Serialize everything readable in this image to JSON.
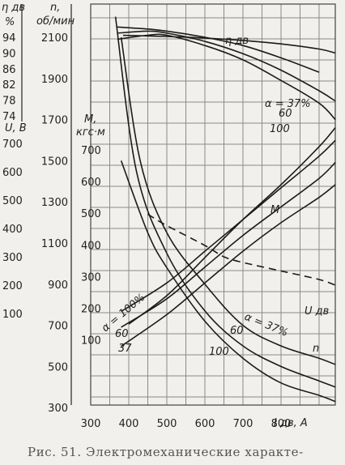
{
  "chart_data": {
    "type": "line",
    "grid": true,
    "xlabel": "I дв, А",
    "x_ticks": [
      "300",
      "400",
      "500",
      "600",
      "700",
      "800"
    ],
    "xlim": [
      300,
      950
    ],
    "axes": [
      {
        "id": "eta",
        "title": "η дв",
        "unit": "%",
        "ticks": [
          "94",
          "90",
          "86",
          "82",
          "78",
          "74"
        ],
        "range": [
          72,
          98
        ]
      },
      {
        "id": "n",
        "title": "n,",
        "unit": "об/мин",
        "ticks": [
          "2100",
          "1900",
          "1700",
          "1500",
          "1300",
          "1100",
          "900",
          "700",
          "500",
          "300"
        ],
        "range": [
          100,
          2300
        ]
      },
      {
        "id": "U",
        "title": "U, В",
        "ticks": [
          "700",
          "600",
          "500",
          "400",
          "300",
          "200",
          "100"
        ],
        "range": [
          -100,
          850
        ]
      },
      {
        "id": "M",
        "title": "M,",
        "unit": "кгс·м",
        "ticks": [
          "700",
          "600",
          "500",
          "400",
          "300",
          "200",
          "100"
        ],
        "range": [
          -100,
          850
        ]
      }
    ],
    "series": [
      {
        "name": "η дв",
        "axis": "eta",
        "style": "solid",
        "x": [
          385,
          500,
          600,
          700,
          800,
          900,
          950
        ],
        "y": [
          94.5,
          94.2,
          93.8,
          93.2,
          92.3,
          91,
          90
        ]
      },
      {
        "label": "α = 37%",
        "axis": "n",
        "style": "solid",
        "x": [
          370,
          450,
          500,
          600,
          700,
          800,
          900
        ],
        "y": [
          2150,
          2140,
          2130,
          2100,
          2060,
          2000,
          1930
        ]
      },
      {
        "label": "60",
        "axis": "n",
        "style": "solid",
        "x": [
          370,
          450,
          500,
          600,
          700,
          800,
          900,
          950
        ],
        "y": [
          2120,
          2130,
          2120,
          2080,
          2020,
          1940,
          1840,
          1790
        ]
      },
      {
        "label": "100",
        "axis": "n",
        "style": "solid",
        "x": [
          370,
          450,
          500,
          600,
          700,
          800,
          900,
          950
        ],
        "y": [
          2090,
          2110,
          2110,
          2060,
          1990,
          1890,
          1780,
          1700
        ]
      },
      {
        "label": "M",
        "axis": "M",
        "style": "solid",
        "x": [
          400,
          500,
          600,
          700,
          800,
          900,
          950
        ],
        "y": [
          150,
          240,
          360,
          480,
          590,
          710,
          770
        ]
      },
      {
        "label": "M α = 100%",
        "axis": "M",
        "style": "solid",
        "x": [
          380,
          500,
          600,
          700,
          800,
          900,
          950
        ],
        "y": [
          190,
          280,
          380,
          480,
          580,
          680,
          730
        ]
      },
      {
        "label": "M α = 60",
        "axis": "M",
        "style": "solid",
        "x": [
          380,
          500,
          600,
          700,
          800,
          900,
          950
        ],
        "y": [
          140,
          230,
          330,
          430,
          520,
          610,
          660
        ]
      },
      {
        "label": "M α = 37",
        "axis": "M",
        "style": "solid",
        "x": [
          380,
          500,
          600,
          700,
          800,
          900,
          950
        ],
        "y": [
          80,
          180,
          280,
          380,
          470,
          550,
          590
        ]
      },
      {
        "label": "U дв",
        "axis": "U",
        "style": "dashed",
        "x": [
          450,
          500,
          600,
          650,
          700,
          800,
          900,
          950
        ],
        "y": [
          450,
          410,
          340,
          300,
          280,
          250,
          220,
          200
        ]
      },
      {
        "label": "n α = 37%",
        "axis": "n",
        "style": "solid",
        "x": [
          380,
          430,
          500,
          600,
          700,
          800,
          900,
          950
        ],
        "y": [
          2100,
          1500,
          1150,
          900,
          700,
          600,
          540,
          510
        ]
      },
      {
        "label": "n α = 60",
        "axis": "n",
        "style": "solid",
        "x": [
          365,
          420,
          500,
          600,
          700,
          800,
          900,
          950
        ],
        "y": [
          2200,
          1450,
          1050,
          770,
          600,
          500,
          430,
          400
        ]
      },
      {
        "label": "n α = 100",
        "axis": "n",
        "style": "solid",
        "x": [
          380,
          450,
          500,
          600,
          700,
          800,
          900,
          950
        ],
        "y": [
          1500,
          1150,
          980,
          720,
          540,
          420,
          360,
          330
        ]
      }
    ],
    "annotations": [
      {
        "text": "η дв"
      },
      {
        "text": "α = 37%"
      },
      {
        "text": "60"
      },
      {
        "text": "100"
      },
      {
        "text": "M"
      },
      {
        "text": "U дв"
      },
      {
        "text": "α = 100%"
      },
      {
        "text": "60"
      },
      {
        "text": "37"
      },
      {
        "text": "60"
      },
      {
        "text": "100"
      },
      {
        "text": "α = 37%"
      },
      {
        "text": "n"
      }
    ]
  },
  "caption": "Рис. 51. Электромеханические характе-"
}
